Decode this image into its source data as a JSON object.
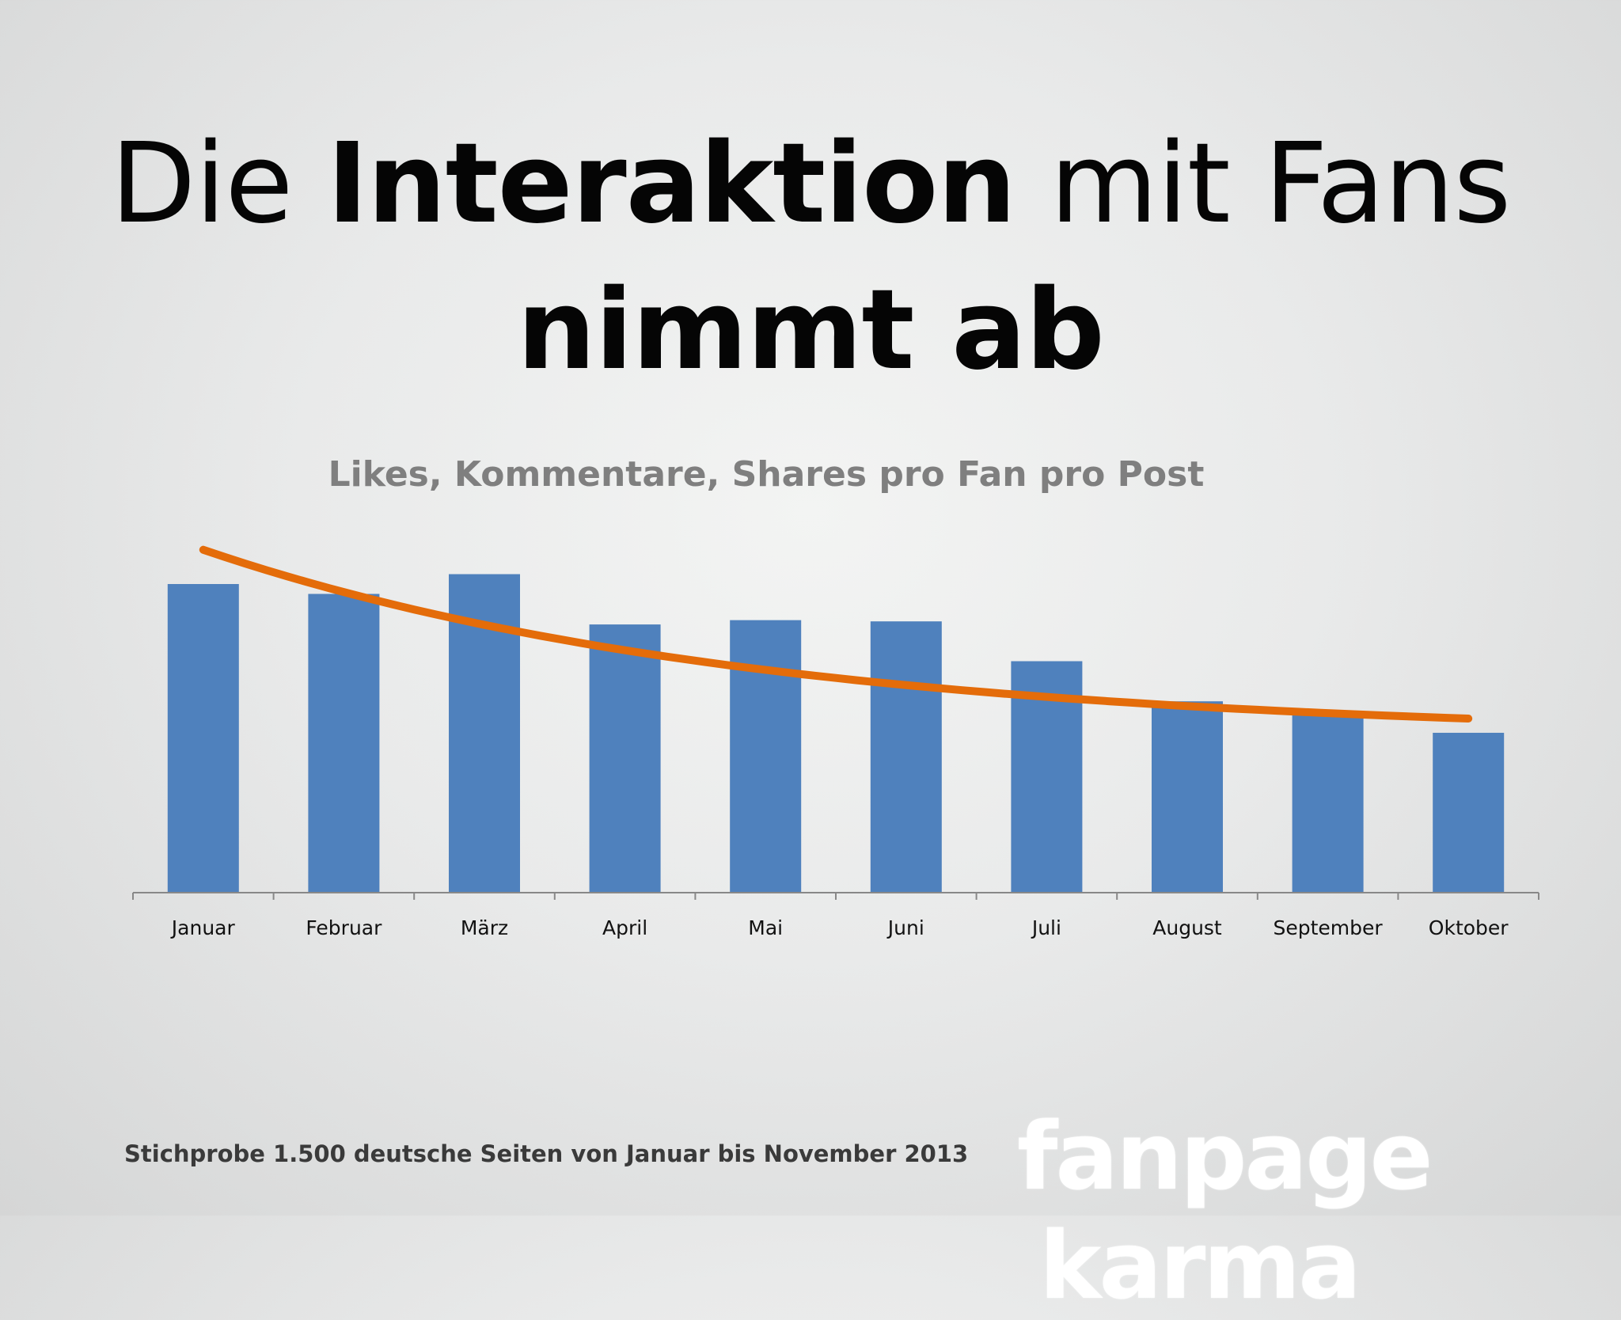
{
  "slide": {
    "title_part1": "Die ",
    "title_bold1": "Interaktion",
    "title_part2": " mit Fans",
    "title_bold2": "nimmt ab",
    "source_note": "Stichprobe 1.500 deutsche Seiten von Januar bis November 2013",
    "logo_word1": "fanpage",
    "logo_word2": "karma"
  },
  "colors": {
    "bar": "#4f81bd",
    "trendline": "#e46c0a",
    "axis": "#888888",
    "chart_title": "#7f7f7f"
  },
  "chart_data": {
    "type": "bar",
    "title": "Likes, Kommentare, Shares pro Fan pro Post",
    "categories": [
      "Januar",
      "Februar",
      "März",
      "April",
      "Mai",
      "Juni",
      "Juli",
      "August",
      "September",
      "Oktober"
    ],
    "values": [
      100,
      96.8,
      103.2,
      86.9,
      88.3,
      87.9,
      75.0,
      62.0,
      57.6,
      51.8
    ],
    "trendline": {
      "type": "line",
      "values": [
        111.1,
        101.3,
        91.9,
        83.3,
        75.9,
        69.1,
        62.4,
        56.4,
        51.0,
        56.4
      ]
    },
    "ylim": [
      0,
      120
    ],
    "xlabel": "",
    "ylabel": "",
    "grid": false,
    "legend": "none"
  }
}
